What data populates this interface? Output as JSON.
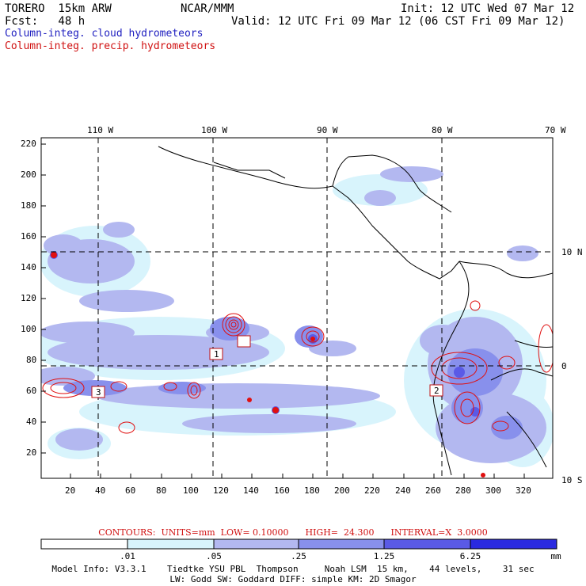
{
  "header": {
    "model": "TORERO  15km ARW",
    "center": "NCAR/MMM",
    "init": "Init: 12 UTC Wed 07 Mar 12",
    "fcst": "Fcst:   48 h",
    "valid": "Valid: 12 UTC Fri 09 Mar 12 (06 CST Fri 09 Mar 12)",
    "field1": "Column-integ. cloud hydrometeors",
    "field2": "Column-integ. precip. hydrometeors"
  },
  "map": {
    "lon_labels": [
      "110 W",
      "100 W",
      "90 W",
      "80 W",
      "70 W"
    ],
    "lat_labels": [
      "10 N",
      "0",
      "10 S"
    ],
    "y_ticks": [
      "220",
      "200",
      "180",
      "160",
      "140",
      "120",
      "100",
      "80",
      "60",
      "40",
      "20"
    ],
    "x_ticks": [
      "20",
      "40",
      "60",
      "80",
      "100",
      "120",
      "140",
      "160",
      "180",
      "200",
      "220",
      "240",
      "260",
      "280",
      "300",
      "320"
    ],
    "box_labels": [
      "1",
      "3",
      "2"
    ],
    "colors": {
      "land_line": "#000000",
      "grid": "#000000",
      "precip": "#e01010"
    }
  },
  "contours_text": "CONTOURS:  UNITS=mm  LOW= 0.10000      HIGH=  24.300      INTERVAL=X  3.0000",
  "colorbar": {
    "labels": [
      ".01",
      ".05",
      ".25",
      "1.25",
      "6.25"
    ],
    "unit": "mm",
    "colors": [
      "#ffffff",
      "#d8f4fc",
      "#b3b8f0",
      "#8890ec",
      "#5a5ae6",
      "#2a2ae0"
    ]
  },
  "footer": {
    "line1": "Model Info: V3.3.1    Tiedtke YSU PBL  Thompson     Noah LSM  15 km,    44 levels,    31 sec",
    "line2": "LW: Godd SW: Goddard DIFF: simple KM: 2D Smagor"
  }
}
